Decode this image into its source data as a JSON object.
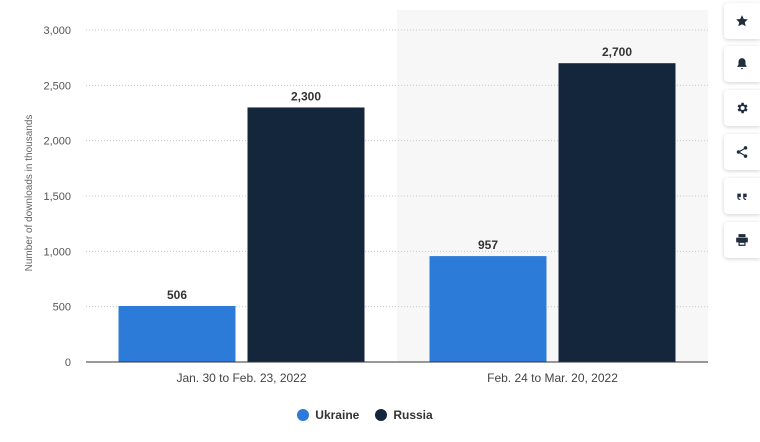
{
  "chart_data": {
    "type": "bar",
    "categories": [
      "Jan. 30 to Feb. 23, 2022",
      "Feb. 24 to Mar. 20, 2022"
    ],
    "series": [
      {
        "name": "Ukraine",
        "values": [
          506,
          957
        ],
        "color": "#2d7bd9"
      },
      {
        "name": "Russia",
        "values": [
          2300,
          2700
        ],
        "color": "#13263c"
      }
    ],
    "value_labels": [
      [
        "506",
        "957"
      ],
      [
        "2,300",
        "2,700"
      ]
    ],
    "ylabel": "Number of downloads in thousands",
    "ylim": [
      0,
      3000
    ],
    "yticks": [
      0,
      500,
      1000,
      1500,
      2000,
      2500,
      3000
    ],
    "ytick_labels": [
      "0",
      "500",
      "1,000",
      "1,500",
      "2,000",
      "2,500",
      "3,000"
    ],
    "grid": true,
    "legend_position": "bottom-center",
    "highlighted_category_index": 1,
    "highlight_color": "#f7f7f7"
  },
  "legend": {
    "items": [
      {
        "label": "Ukraine",
        "color": "#2d7bd9"
      },
      {
        "label": "Russia",
        "color": "#13263c"
      }
    ]
  },
  "toolbar": {
    "buttons": [
      {
        "name": "favorite-button",
        "icon": "star-icon"
      },
      {
        "name": "notification-button",
        "icon": "bell-icon"
      },
      {
        "name": "settings-button",
        "icon": "gear-icon"
      },
      {
        "name": "share-button",
        "icon": "share-icon"
      },
      {
        "name": "cite-button",
        "icon": "quote-icon"
      },
      {
        "name": "print-button",
        "icon": "print-icon"
      }
    ]
  }
}
